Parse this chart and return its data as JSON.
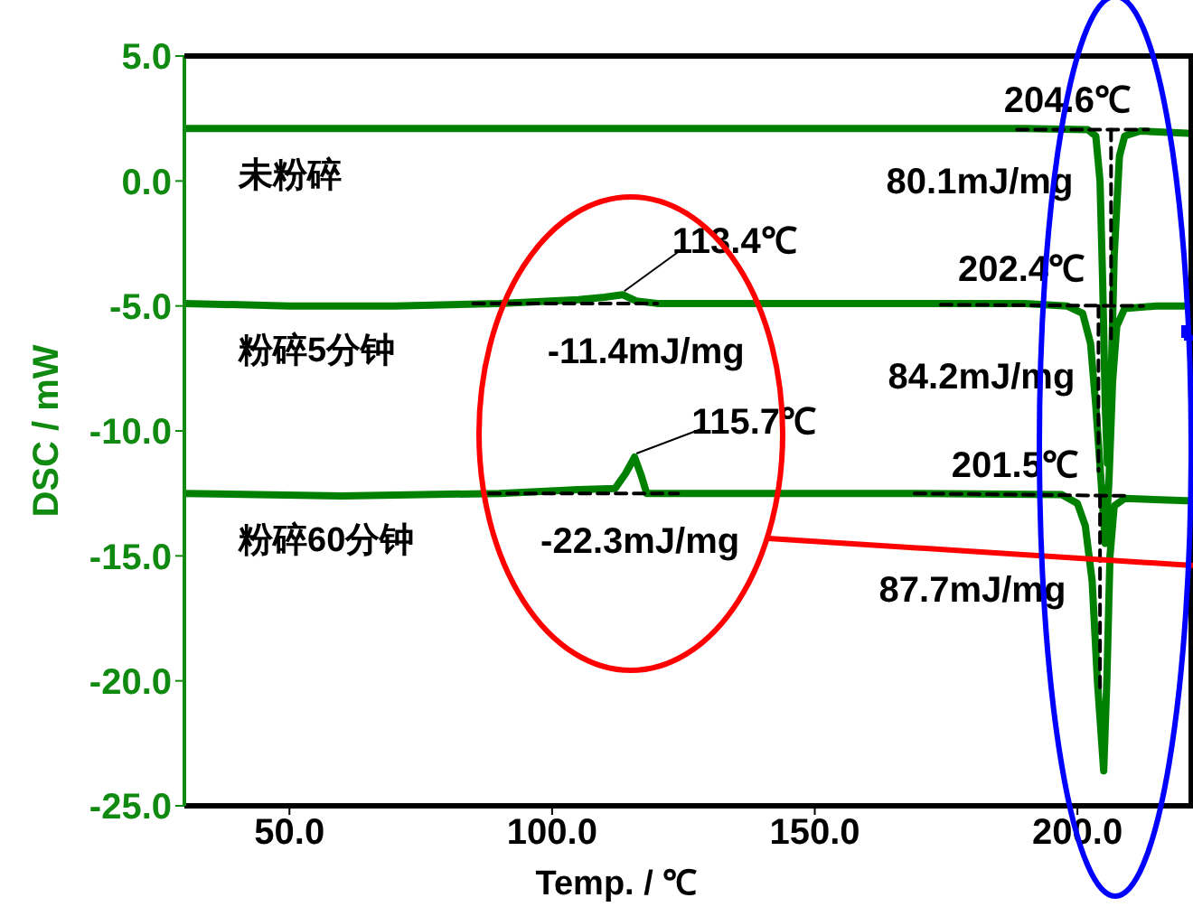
{
  "chart_data": {
    "type": "line",
    "xlabel": "Temp.  /  ℃",
    "ylabel": "DSC  / mW",
    "xlim": [
      30,
      222
    ],
    "ylim": [
      -25,
      5
    ],
    "xticks": [
      {
        "value": 50,
        "label": "50.0"
      },
      {
        "value": 100,
        "label": "100.0"
      },
      {
        "value": 150,
        "label": "150.0"
      },
      {
        "value": 200,
        "label": "200.0"
      }
    ],
    "yticks": [
      {
        "value": -25,
        "label": "-25.0"
      },
      {
        "value": -20,
        "label": "-20.0"
      },
      {
        "value": -15,
        "label": "-15.0"
      },
      {
        "value": -10,
        "label": "-10.0"
      },
      {
        "value": -5,
        "label": "-5.0"
      },
      {
        "value": 0,
        "label": "0.0"
      },
      {
        "value": 5,
        "label": "5.0"
      }
    ],
    "grid": false,
    "legend": "left",
    "marker": "none",
    "series": [
      {
        "name": "未粉碎",
        "color": "#008000",
        "x": [
          30,
          60,
          100,
          150,
          190,
          202,
          203.5,
          204.3,
          204.8,
          205.3,
          205.7,
          206.3,
          207,
          208,
          209,
          212,
          222
        ],
        "values": [
          2.1,
          2.1,
          2.1,
          2.1,
          2.1,
          2.05,
          1.8,
          0,
          -4,
          -9,
          -11.3,
          -9,
          -3,
          1,
          1.8,
          2.0,
          1.9
        ]
      },
      {
        "name": "粉碎5分钟",
        "color": "#008000",
        "x": [
          30,
          50,
          70,
          90,
          105,
          110,
          113.4,
          116,
          120,
          150,
          190,
          198,
          201,
          202.5,
          203.5,
          204.5,
          205.3,
          206,
          206.7,
          207.5,
          209,
          215,
          222
        ],
        "values": [
          -4.9,
          -5.0,
          -5.0,
          -4.9,
          -4.75,
          -4.65,
          -4.55,
          -4.8,
          -4.9,
          -4.9,
          -4.9,
          -5.0,
          -5.3,
          -6.5,
          -9,
          -12,
          -14.5,
          -12,
          -8,
          -5.8,
          -5.1,
          -5.0,
          -5.0
        ]
      },
      {
        "name": "粉碎60分钟",
        "color": "#008000",
        "x": [
          30,
          60,
          90,
          105,
          112,
          114,
          115.7,
          117,
          118,
          130,
          170,
          197,
          200,
          201.5,
          202.8,
          203.8,
          205,
          205.6,
          206.2,
          207,
          209,
          222
        ],
        "values": [
          -12.5,
          -12.6,
          -12.5,
          -12.35,
          -12.3,
          -11.7,
          -11.05,
          -11.8,
          -12.5,
          -12.5,
          -12.5,
          -12.55,
          -12.9,
          -13.8,
          -16,
          -20,
          -23.6,
          -20,
          -15,
          -13,
          -12.7,
          -12.8
        ]
      },
      {
        "color": "#000000",
        "line_style": "dashed",
        "x": [
          188.5,
          213.5
        ],
        "values": [
          2.05,
          2.05
        ]
      },
      {
        "color": "#000000",
        "line_style": "dashed",
        "x": [
          206.4,
          206.4
        ],
        "values": [
          2.05,
          -6.3
        ]
      },
      {
        "color": "#000000",
        "line_style": "dashed",
        "x": [
          85,
          120
        ],
        "values": [
          -4.9,
          -4.9
        ]
      },
      {
        "color": "#000000",
        "line_style": "dashed",
        "x": [
          174,
          212.5
        ],
        "values": [
          -4.95,
          -5.0
        ]
      },
      {
        "color": "#000000",
        "line_style": "dashed",
        "x": [
          204,
          204
        ],
        "values": [
          -5.0,
          -11.6
        ]
      },
      {
        "color": "#000000",
        "line_style": "dashed",
        "x": [
          88,
          124
        ],
        "values": [
          -12.5,
          -12.5
        ]
      },
      {
        "color": "#000000",
        "line_style": "dashed",
        "x": [
          169,
          210
        ],
        "values": [
          -12.5,
          -12.6
        ]
      },
      {
        "color": "#000000",
        "line_style": "dashed",
        "x": [
          204.3,
          204.3
        ],
        "values": [
          -12.6,
          -20.4
        ]
      }
    ],
    "annotations": [
      {
        "text": "204.6℃",
        "x": 204.6,
        "y": 2.1
      },
      "80.1mJ/mg",
      {
        "text": "113.4℃",
        "x": 113.4,
        "y": -4.55
      },
      {
        "text": "-11.4mJ/mg",
        "x": 113.4,
        "y": -4.55
      },
      {
        "text": "202.4℃",
        "x": 202.4,
        "y": -4.95
      },
      "84.2mJ/mg",
      {
        "text": "115.7℃",
        "x": 115.7,
        "y": -11.05
      },
      {
        "text": "-22.3mJ/mg",
        "x": 115.7,
        "y": -11.05
      },
      {
        "text": "201.5℃",
        "x": 201.5,
        "y": -12.5
      },
      "87.7mJ/mg"
    ]
  }
}
